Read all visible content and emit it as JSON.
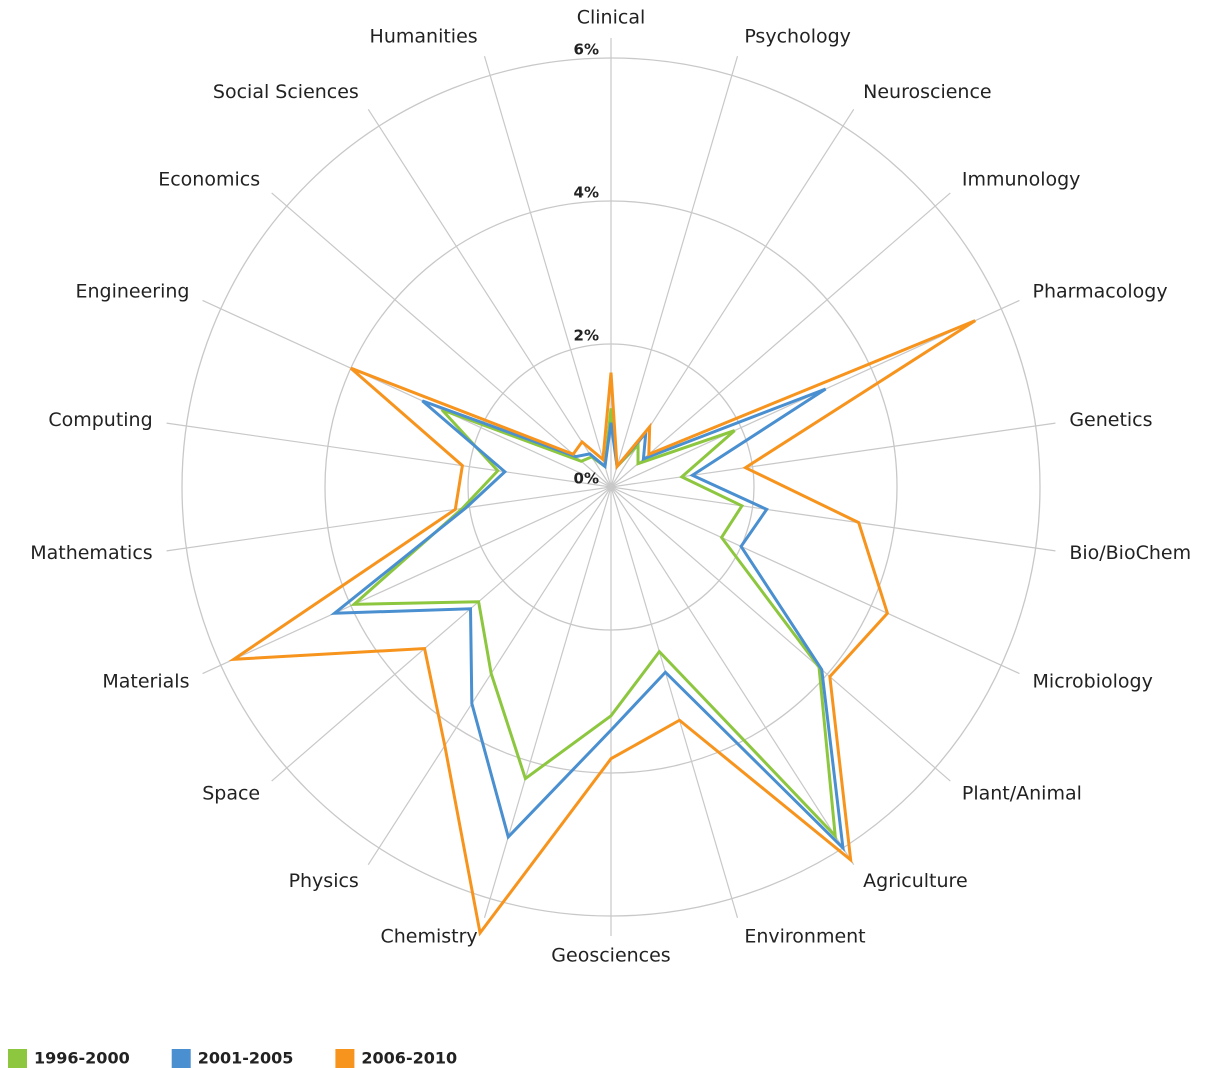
{
  "chart_data": {
    "type": "radar",
    "categories": [
      "Clinical",
      "Psychology",
      "Neuroscience",
      "Immunology",
      "Pharmacology",
      "Genetics",
      "Bio/BioChem",
      "Microbiology",
      "Plant/Animal",
      "Agriculture",
      "Environment",
      "Geosciences",
      "Chemistry",
      "Physics",
      "Space",
      "Materials",
      "Mathematics",
      "Computing",
      "Engineering",
      "Economics",
      "Social Sciences",
      "Humanities"
    ],
    "series": [
      {
        "name": "1996-2000",
        "color": "#8dc63f",
        "values": [
          1.1,
          0.3,
          0.7,
          0.5,
          1.9,
          1.0,
          1.85,
          1.7,
          3.85,
          5.8,
          2.4,
          3.2,
          4.25,
          3.1,
          2.45,
          3.95,
          2.1,
          1.6,
          2.6,
          0.55,
          0.5,
          0.3
        ]
      },
      {
        "name": "2001-2005",
        "color": "#4a8fd0",
        "values": [
          0.9,
          0.3,
          0.9,
          0.6,
          3.3,
          1.15,
          2.2,
          2.0,
          3.9,
          6.0,
          2.7,
          3.4,
          5.1,
          3.6,
          2.6,
          4.25,
          2.05,
          1.5,
          2.9,
          0.65,
          0.55,
          0.3
        ]
      },
      {
        "name": "2006-2010",
        "color": "#f7941d",
        "values": [
          1.6,
          0.3,
          1.0,
          0.7,
          5.6,
          1.9,
          3.5,
          4.25,
          4.05,
          6.2,
          3.4,
          3.8,
          6.5,
          4.3,
          3.45,
          5.8,
          2.2,
          2.1,
          4.0,
          0.7,
          0.75,
          0.4
        ]
      }
    ],
    "rlim": [
      0,
      6
    ],
    "rticks": [
      {
        "value": 0,
        "label": "0%"
      },
      {
        "value": 2,
        "label": "2%"
      },
      {
        "value": 4,
        "label": "4%"
      },
      {
        "value": 6,
        "label": "6%"
      }
    ],
    "grid": true
  }
}
